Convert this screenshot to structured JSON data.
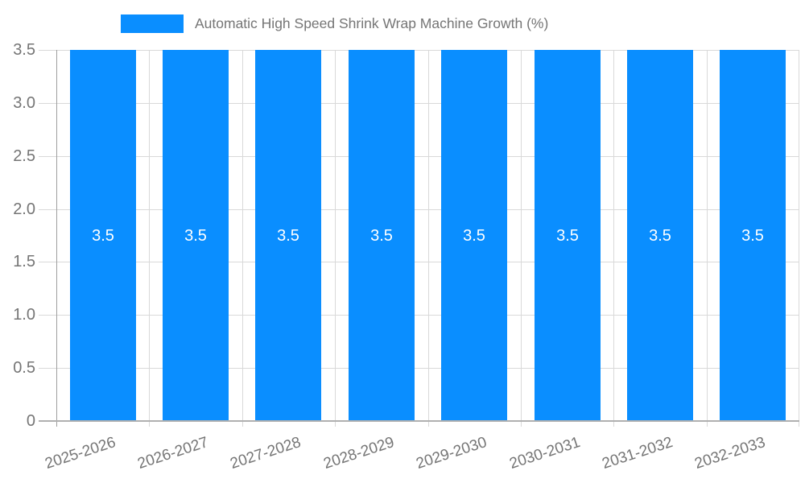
{
  "chart_data": {
    "type": "bar",
    "title": "Automatic High Speed Shrink Wrap Machine Growth (%)",
    "legend_label": "Automatic High Speed Shrink Wrap Machine Growth (%)",
    "legend_position": "top",
    "categories": [
      "2025-2026",
      "2026-2027",
      "2027-2028",
      "2028-2029",
      "2029-2030",
      "2030-2031",
      "2031-2032",
      "2032-2033"
    ],
    "values": [
      3.5,
      3.5,
      3.5,
      3.5,
      3.5,
      3.5,
      3.5,
      3.5
    ],
    "bar_value_labels": [
      "3.5",
      "3.5",
      "3.5",
      "3.5",
      "3.5",
      "3.5",
      "3.5",
      "3.5"
    ],
    "xlabel": "",
    "ylabel": "",
    "ylim": [
      0,
      3.5
    ],
    "yticks": [
      "0",
      "0.5",
      "1.0",
      "1.5",
      "2.0",
      "2.5",
      "3.0",
      "3.5"
    ],
    "grid": true,
    "colors": {
      "bar": "#0a8eff",
      "bar_label": "#ffffff",
      "axis_text": "#757575",
      "gridline": "#d9d9d9",
      "baseline": "#b0b0b0",
      "axis_line": "#9e9e9e",
      "background": "#ffffff"
    }
  }
}
